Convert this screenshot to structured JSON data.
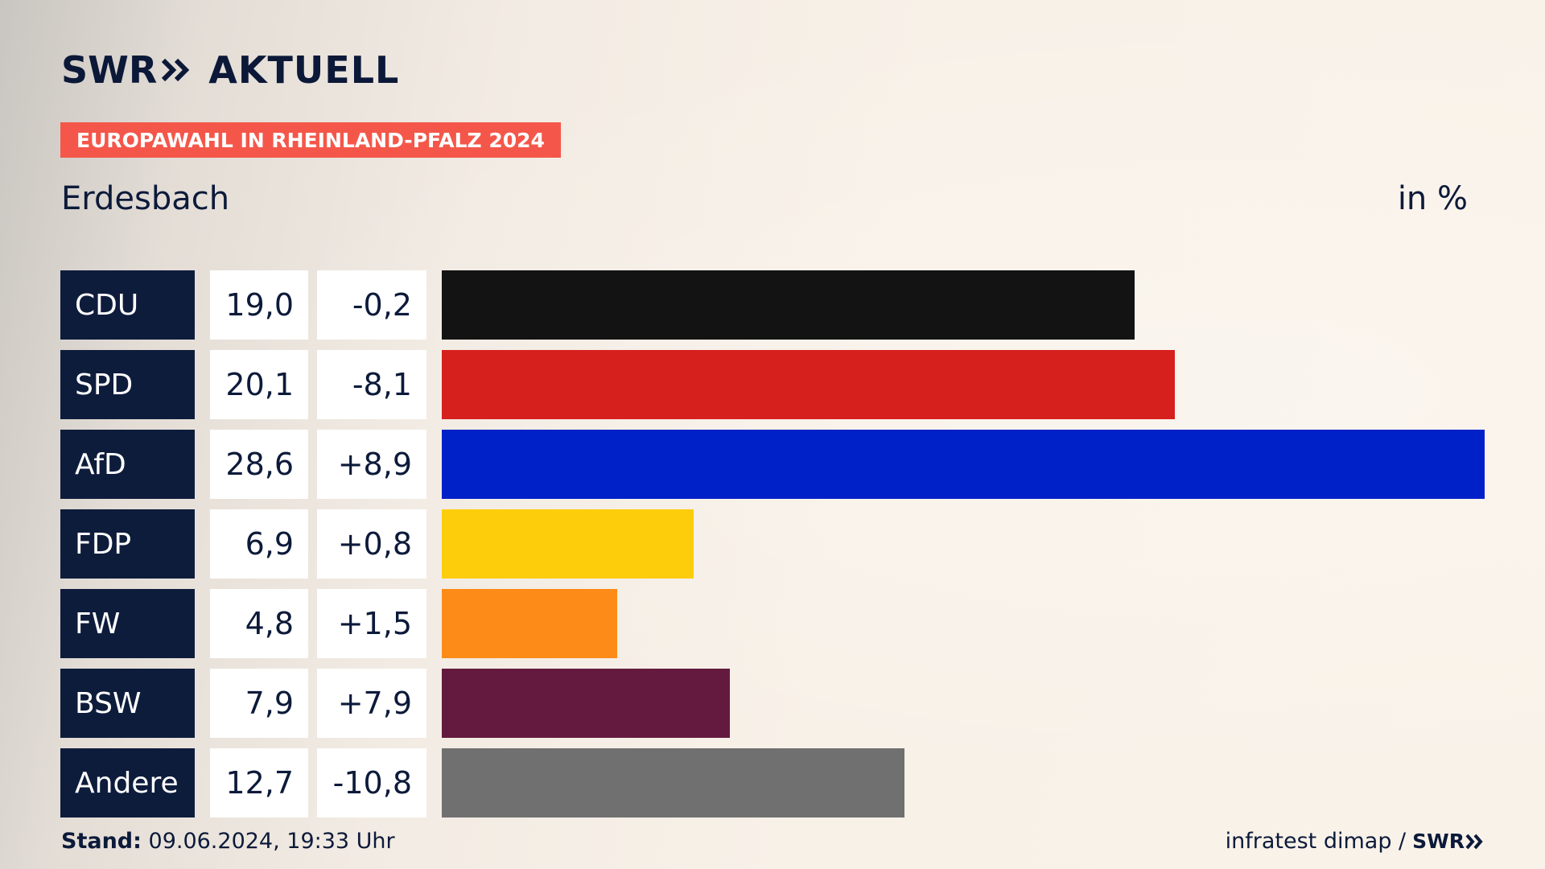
{
  "header": {
    "logo_swr": "SWR",
    "logo_aktuell": "AKTUELL",
    "badge": "EUROPAWAHL IN RHEINLAND-PFALZ 2024",
    "subtitle": "Erdesbach",
    "unit": "in %"
  },
  "footer": {
    "stand_label": "Stand:",
    "stand_value": "09.06.2024, 19:33 Uhr",
    "source": "infratest dimap /",
    "source_logo": "SWR"
  },
  "colors": {
    "navy": "#0e1c3c",
    "badge": "#f4574a"
  },
  "chart_data": {
    "type": "bar",
    "orientation": "horizontal",
    "categories": [
      "CDU",
      "SPD",
      "AfD",
      "FDP",
      "FW",
      "BSW",
      "Andere"
    ],
    "values": [
      19.0,
      20.1,
      28.6,
      6.9,
      4.8,
      7.9,
      12.7
    ],
    "value_labels": [
      "19,0",
      "20,1",
      "28,6",
      "6,9",
      "4,8",
      "7,9",
      "12,7"
    ],
    "changes": [
      "-0,2",
      "-8,1",
      "+8,9",
      "+0,8",
      "+1,5",
      "+7,9",
      "-10,8"
    ],
    "colors": [
      "#131313",
      "#d6201e",
      "#0020c8",
      "#fdcd0b",
      "#fd8b18",
      "#641a3e",
      "#707070"
    ],
    "xlim": [
      0,
      28.6
    ],
    "grid": false
  }
}
